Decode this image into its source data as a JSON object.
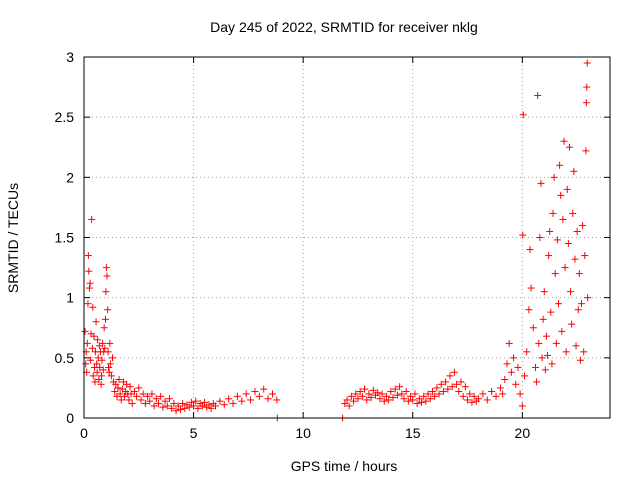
{
  "chart_data": {
    "type": "scatter",
    "title": "Day 245 of 2022, SRMTID for receiver nklg",
    "xlabel": "GPS time / hours",
    "ylabel": "SRMTID / TECUs",
    "xlim": [
      0,
      24
    ],
    "ylim": [
      0,
      3
    ],
    "x_ticks": [
      0,
      5,
      10,
      15,
      20
    ],
    "y_ticks": [
      0,
      0.5,
      1,
      1.5,
      2,
      2.5,
      3
    ],
    "x_tick_labels": [
      "0",
      "5",
      "10",
      "15",
      "20"
    ],
    "y_tick_labels": [
      "0",
      "0.5",
      "1",
      "1.5",
      "2",
      "2.5",
      "3"
    ],
    "grid": true,
    "marker": "plus",
    "color": "#ff0000",
    "series": [
      {
        "name": "SRMTID",
        "points": [
          [
            0.05,
            0.72
          ],
          [
            0.08,
            0.45
          ],
          [
            0.1,
            0.55
          ],
          [
            0.12,
            0.38
          ],
          [
            0.15,
            0.62
          ],
          [
            0.18,
            0.95
          ],
          [
            0.2,
            1.35
          ],
          [
            0.22,
            1.22
          ],
          [
            0.25,
            1.08
          ],
          [
            0.28,
            1.12
          ],
          [
            0.3,
            0.48
          ],
          [
            0.32,
            0.7
          ],
          [
            0.35,
            1.65
          ],
          [
            0.38,
            0.58
          ],
          [
            0.4,
            0.92
          ],
          [
            0.42,
            0.35
          ],
          [
            0.45,
            0.68
          ],
          [
            0.48,
            0.42
          ],
          [
            0.5,
            0.3
          ],
          [
            0.52,
            0.55
          ],
          [
            0.55,
            0.8
          ],
          [
            0.58,
            0.45
          ],
          [
            0.6,
            0.38
          ],
          [
            0.62,
            0.65
          ],
          [
            0.65,
            0.5
          ],
          [
            0.68,
            0.32
          ],
          [
            0.7,
            0.6
          ],
          [
            0.72,
            0.42
          ],
          [
            0.75,
            0.55
          ],
          [
            0.78,
            0.28
          ],
          [
            0.8,
            0.35
          ],
          [
            0.82,
            0.48
          ],
          [
            0.85,
            0.62
          ],
          [
            0.88,
            0.4
          ],
          [
            0.9,
            0.55
          ],
          [
            0.92,
            0.75
          ],
          [
            0.95,
            0.58
          ],
          [
            0.98,
            0.82
          ],
          [
            1.0,
            1.05
          ],
          [
            1.02,
            1.25
          ],
          [
            1.05,
            1.18
          ],
          [
            1.08,
            0.9
          ],
          [
            1.1,
            0.55
          ],
          [
            1.12,
            0.42
          ],
          [
            1.15,
            0.38
          ],
          [
            1.18,
            0.62
          ],
          [
            1.2,
            0.45
          ],
          [
            1.25,
            0.35
          ],
          [
            1.3,
            0.5
          ],
          [
            1.35,
            0.3
          ],
          [
            1.4,
            0.22
          ],
          [
            1.45,
            0.28
          ],
          [
            1.5,
            0.18
          ],
          [
            1.55,
            0.25
          ],
          [
            1.6,
            0.32
          ],
          [
            1.65,
            0.2
          ],
          [
            1.7,
            0.15
          ],
          [
            1.75,
            0.24
          ],
          [
            1.8,
            0.3
          ],
          [
            1.85,
            0.18
          ],
          [
            1.9,
            0.22
          ],
          [
            1.95,
            0.28
          ],
          [
            2.0,
            0.2
          ],
          [
            2.05,
            0.15
          ],
          [
            2.1,
            0.26
          ],
          [
            2.15,
            0.2
          ],
          [
            2.2,
            0.12
          ],
          [
            2.3,
            0.22
          ],
          [
            2.4,
            0.18
          ],
          [
            2.5,
            0.25
          ],
          [
            2.6,
            0.15
          ],
          [
            2.7,
            0.2
          ],
          [
            2.8,
            0.12
          ],
          [
            2.9,
            0.18
          ],
          [
            3.0,
            0.14
          ],
          [
            3.1,
            0.2
          ],
          [
            3.2,
            0.1
          ],
          [
            3.3,
            0.16
          ],
          [
            3.4,
            0.12
          ],
          [
            3.5,
            0.18
          ],
          [
            3.6,
            0.09
          ],
          [
            3.7,
            0.14
          ],
          [
            3.8,
            0.1
          ],
          [
            3.9,
            0.16
          ],
          [
            4.0,
            0.08
          ],
          [
            4.1,
            0.12
          ],
          [
            4.2,
            0.06
          ],
          [
            4.3,
            0.1
          ],
          [
            4.4,
            0.07
          ],
          [
            4.5,
            0.12
          ],
          [
            4.6,
            0.08
          ],
          [
            4.7,
            0.11
          ],
          [
            4.8,
            0.09
          ],
          [
            4.9,
            0.13
          ],
          [
            5.0,
            0.1
          ],
          [
            5.1,
            0.14
          ],
          [
            5.2,
            0.08
          ],
          [
            5.3,
            0.12
          ],
          [
            5.4,
            0.1
          ],
          [
            5.5,
            0.13
          ],
          [
            5.6,
            0.09
          ],
          [
            5.7,
            0.11
          ],
          [
            5.8,
            0.08
          ],
          [
            5.9,
            0.12
          ],
          [
            6.0,
            0.1
          ],
          [
            6.2,
            0.14
          ],
          [
            6.4,
            0.11
          ],
          [
            6.6,
            0.16
          ],
          [
            6.8,
            0.12
          ],
          [
            7.0,
            0.18
          ],
          [
            7.2,
            0.14
          ],
          [
            7.4,
            0.2
          ],
          [
            7.6,
            0.15
          ],
          [
            7.8,
            0.22
          ],
          [
            8.0,
            0.18
          ],
          [
            8.2,
            0.24
          ],
          [
            8.4,
            0.16
          ],
          [
            8.6,
            0.2
          ],
          [
            8.8,
            0.15
          ],
          [
            8.82,
            0.0
          ],
          [
            11.8,
            0.0
          ],
          [
            11.9,
            0.12
          ],
          [
            12.0,
            0.15
          ],
          [
            12.1,
            0.1
          ],
          [
            12.2,
            0.18
          ],
          [
            12.3,
            0.14
          ],
          [
            12.4,
            0.2
          ],
          [
            12.5,
            0.16
          ],
          [
            12.6,
            0.22
          ],
          [
            12.7,
            0.18
          ],
          [
            12.8,
            0.24
          ],
          [
            12.9,
            0.15
          ],
          [
            13.0,
            0.2
          ],
          [
            13.1,
            0.17
          ],
          [
            13.2,
            0.23
          ],
          [
            13.3,
            0.19
          ],
          [
            13.4,
            0.21
          ],
          [
            13.5,
            0.16
          ],
          [
            13.6,
            0.2
          ],
          [
            13.7,
            0.14
          ],
          [
            13.8,
            0.18
          ],
          [
            13.9,
            0.15
          ],
          [
            14.0,
            0.22
          ],
          [
            14.1,
            0.17
          ],
          [
            14.2,
            0.24
          ],
          [
            14.3,
            0.19
          ],
          [
            14.4,
            0.26
          ],
          [
            14.5,
            0.2
          ],
          [
            14.6,
            0.16
          ],
          [
            14.7,
            0.22
          ],
          [
            14.8,
            0.14
          ],
          [
            14.9,
            0.18
          ],
          [
            15.0,
            0.15
          ],
          [
            15.1,
            0.2
          ],
          [
            15.2,
            0.12
          ],
          [
            15.3,
            0.16
          ],
          [
            15.4,
            0.13
          ],
          [
            15.5,
            0.18
          ],
          [
            15.6,
            0.14
          ],
          [
            15.7,
            0.2
          ],
          [
            15.8,
            0.16
          ],
          [
            15.9,
            0.22
          ],
          [
            16.0,
            0.18
          ],
          [
            16.1,
            0.25
          ],
          [
            16.2,
            0.2
          ],
          [
            16.3,
            0.28
          ],
          [
            16.4,
            0.22
          ],
          [
            16.5,
            0.3
          ],
          [
            16.6,
            0.24
          ],
          [
            16.7,
            0.35
          ],
          [
            16.8,
            0.26
          ],
          [
            16.9,
            0.38
          ],
          [
            17.0,
            0.28
          ],
          [
            17.1,
            0.22
          ],
          [
            17.2,
            0.3
          ],
          [
            17.3,
            0.18
          ],
          [
            17.4,
            0.26
          ],
          [
            17.5,
            0.15
          ],
          [
            17.6,
            0.2
          ],
          [
            17.7,
            0.13
          ],
          [
            17.8,
            0.18
          ],
          [
            17.9,
            0.14
          ],
          [
            18.0,
            0.16
          ],
          [
            18.2,
            0.2
          ],
          [
            18.4,
            0.15
          ],
          [
            18.6,
            0.22
          ],
          [
            18.8,
            0.18
          ],
          [
            19.0,
            0.25
          ],
          [
            19.1,
            0.2
          ],
          [
            19.2,
            0.32
          ],
          [
            19.3,
            0.45
          ],
          [
            19.4,
            0.62
          ],
          [
            19.5,
            0.38
          ],
          [
            19.6,
            0.5
          ],
          [
            19.7,
            0.28
          ],
          [
            19.8,
            0.42
          ],
          [
            19.9,
            0.2
          ],
          [
            20.0,
            0.1
          ],
          [
            20.02,
            1.52
          ],
          [
            20.04,
            2.52
          ],
          [
            20.1,
            0.35
          ],
          [
            20.2,
            0.55
          ],
          [
            20.3,
            0.9
          ],
          [
            20.35,
            1.4
          ],
          [
            20.4,
            1.08
          ],
          [
            20.5,
            0.75
          ],
          [
            20.6,
            0.42
          ],
          [
            20.65,
            0.3
          ],
          [
            20.7,
            2.68
          ],
          [
            20.75,
            0.62
          ],
          [
            20.8,
            1.5
          ],
          [
            20.85,
            1.95
          ],
          [
            20.9,
            0.5
          ],
          [
            20.95,
            0.82
          ],
          [
            21.0,
            1.05
          ],
          [
            21.05,
            0.4
          ],
          [
            21.1,
            0.68
          ],
          [
            21.15,
            0.52
          ],
          [
            21.2,
            1.35
          ],
          [
            21.25,
            1.55
          ],
          [
            21.3,
            0.88
          ],
          [
            21.35,
            0.45
          ],
          [
            21.4,
            1.7
          ],
          [
            21.45,
            2.0
          ],
          [
            21.5,
            1.2
          ],
          [
            21.55,
            0.62
          ],
          [
            21.6,
            1.48
          ],
          [
            21.65,
            0.95
          ],
          [
            21.7,
            2.1
          ],
          [
            21.75,
            1.85
          ],
          [
            21.8,
            0.72
          ],
          [
            21.85,
            1.65
          ],
          [
            21.9,
            2.3
          ],
          [
            21.95,
            1.25
          ],
          [
            22.0,
            0.55
          ],
          [
            22.05,
            1.9
          ],
          [
            22.1,
            1.45
          ],
          [
            22.15,
            2.25
          ],
          [
            22.2,
            1.05
          ],
          [
            22.25,
            0.78
          ],
          [
            22.3,
            1.7
          ],
          [
            22.35,
            2.05
          ],
          [
            22.4,
            1.32
          ],
          [
            22.45,
            0.6
          ],
          [
            22.5,
            1.55
          ],
          [
            22.55,
            0.9
          ],
          [
            22.6,
            1.2
          ],
          [
            22.65,
            0.48
          ],
          [
            22.7,
            0.95
          ],
          [
            22.75,
            1.6
          ],
          [
            22.8,
            0.55
          ],
          [
            22.85,
            1.35
          ],
          [
            22.9,
            2.22
          ],
          [
            22.92,
            2.62
          ],
          [
            22.94,
            2.75
          ],
          [
            22.96,
            2.95
          ],
          [
            22.98,
            1.0
          ]
        ]
      }
    ]
  }
}
